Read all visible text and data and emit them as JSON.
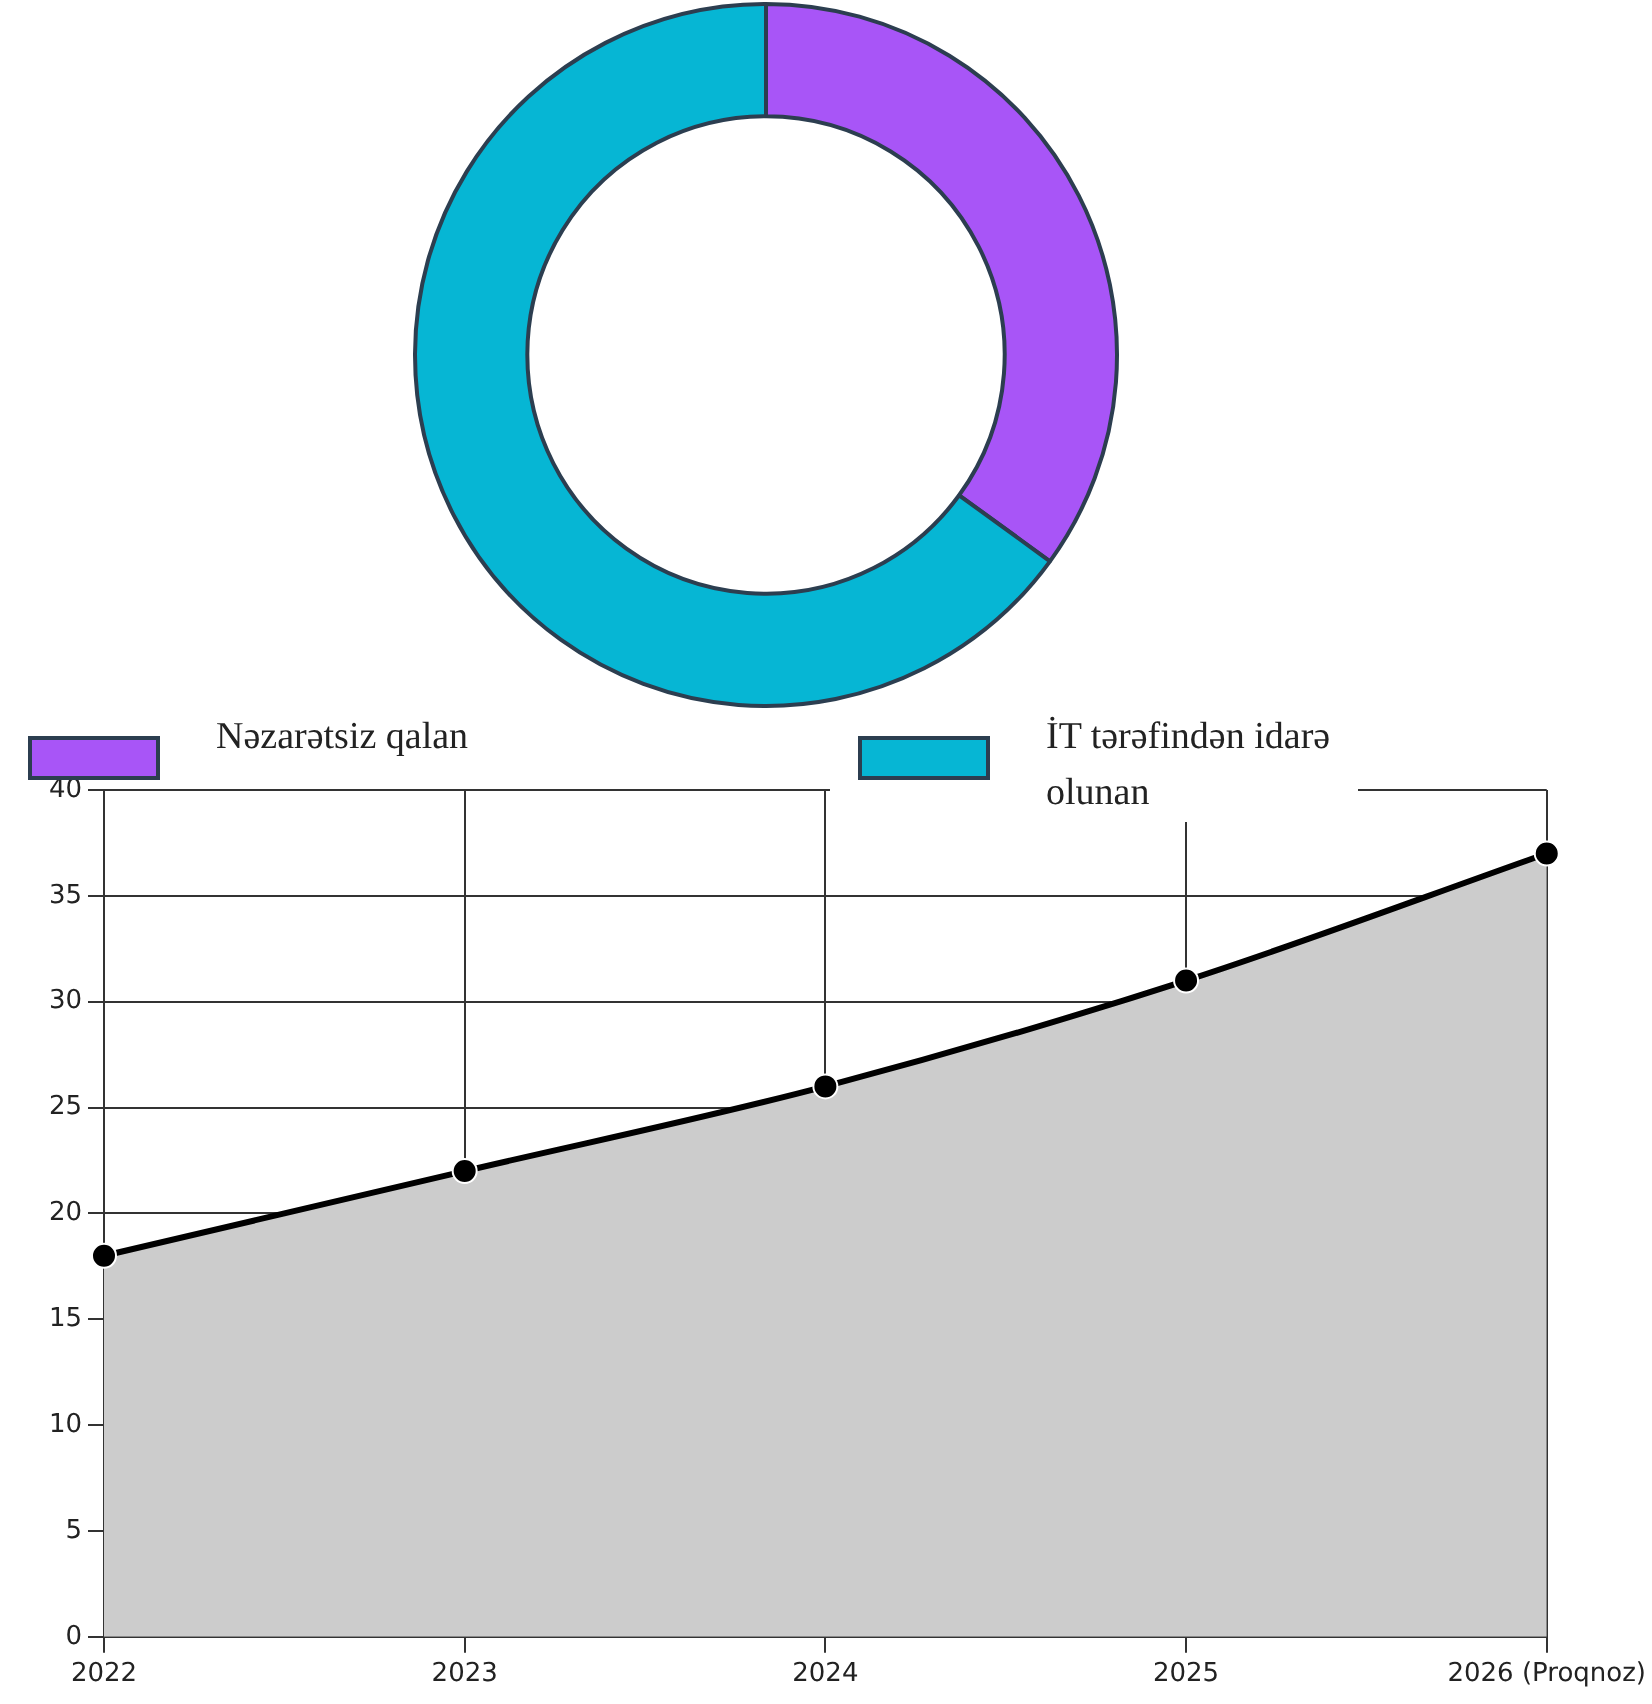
{
  "chart_data": [
    {
      "type": "donut",
      "categories": [
        "Nəzarətsiz qalan",
        "İT tərəfindən idarə olunan"
      ],
      "values": [
        35,
        65
      ],
      "colors": [
        "#a855f7",
        "#06b6d4"
      ],
      "legend": "bottom"
    },
    {
      "type": "area",
      "categories": [
        "2022",
        "2023",
        "2024",
        "2025",
        "2026 (Proqnoz)"
      ],
      "values": [
        18,
        22,
        26,
        31,
        37
      ],
      "color": "#cccccc",
      "ylim": [
        0,
        40
      ],
      "yticks": [
        0,
        5,
        10,
        15,
        20,
        25,
        30,
        35,
        40
      ],
      "grid": true,
      "marker": "circle"
    }
  ]
}
